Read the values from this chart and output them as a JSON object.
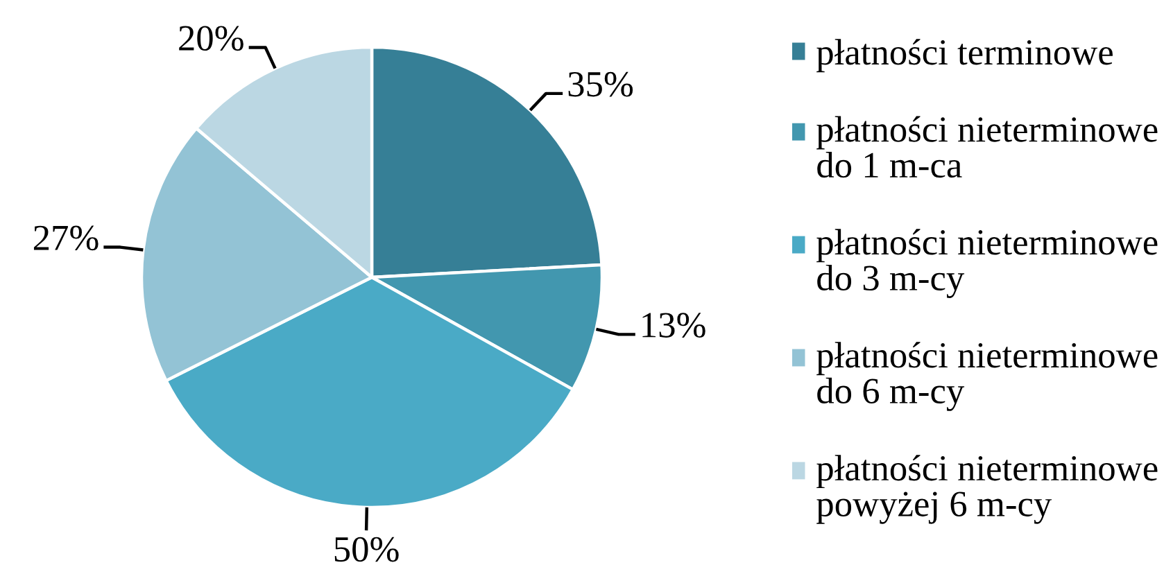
{
  "chart_data": {
    "type": "pie",
    "categories": [
      "płatności terminowe",
      "płatności nieterminowe\ndo 1 m-ca",
      "płatności nieterminowe\ndo 3 m-cy",
      "płatności nieterminowe\ndo 6 m-cy",
      "płatności nieterminowe\npowyżej 6 m-cy"
    ],
    "values": [
      35,
      13,
      50,
      27,
      20
    ],
    "value_labels": [
      "35%",
      "13%",
      "50%",
      "27%",
      "20%"
    ],
    "colors": [
      "#367f96",
      "#4297af",
      "#4aaac6",
      "#93c3d5",
      "#bbd7e3"
    ],
    "legend": "right"
  }
}
